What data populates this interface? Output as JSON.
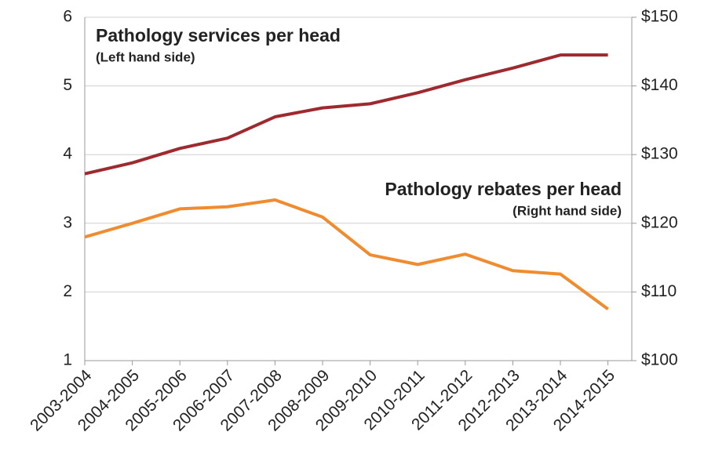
{
  "chart_data": {
    "type": "line",
    "categories": [
      "2003-2004",
      "2004-2005",
      "2005-2006",
      "2006-2007",
      "2007-2008",
      "2008-2009",
      "2009-2010",
      "2010-2011",
      "2011-2012",
      "2012-2013",
      "2013-2014",
      "2014-2015"
    ],
    "series": [
      {
        "name": "Pathology services per head",
        "note": "(Left hand side)",
        "color": "#9e2a2f",
        "axis": "y",
        "values": [
          3.72,
          3.88,
          4.09,
          4.24,
          4.55,
          4.68,
          4.74,
          4.9,
          5.09,
          5.26,
          5.45,
          5.45
        ]
      },
      {
        "name": "Pathology rebates per head",
        "note": "(Right hand side)",
        "color": "#f08c2f",
        "axis": "y2",
        "values": [
          118.0,
          120.0,
          122.1,
          122.4,
          123.4,
          120.9,
          115.4,
          114.0,
          115.5,
          113.1,
          112.6,
          107.5
        ]
      }
    ],
    "ylim": [
      1,
      6
    ],
    "yticks": [
      1,
      2,
      3,
      4,
      5,
      6
    ],
    "y2lim": [
      100,
      150
    ],
    "y2ticks": [
      {
        "value": 100,
        "label": "$100"
      },
      {
        "value": 110,
        "label": "$110"
      },
      {
        "value": 120,
        "label": "$120"
      },
      {
        "value": 130,
        "label": "$130"
      },
      {
        "value": 140,
        "label": "$140"
      },
      {
        "value": 150,
        "label": "$150"
      }
    ],
    "grid": true
  }
}
